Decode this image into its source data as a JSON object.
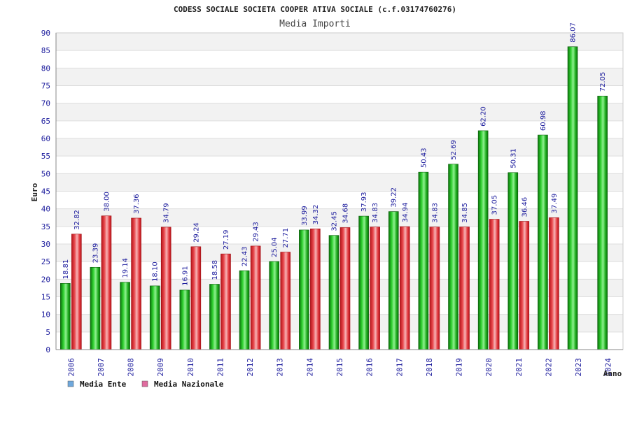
{
  "chart_data": {
    "type": "bar",
    "title": "CODESS SOCIALE SOCIETA COOPER ATIVA SOCIALE (c.f.03174760276)",
    "subtitle": "Media Importi",
    "xlabel": "Anno",
    "ylabel": "Euro",
    "ylim": [
      0,
      90
    ],
    "ytick_step": 5,
    "grid": true,
    "legend_position": "bottom-left",
    "categories": [
      "2006",
      "2007",
      "2008",
      "2009",
      "2010",
      "2011",
      "2012",
      "2013",
      "2014",
      "2015",
      "2016",
      "2017",
      "2018",
      "2019",
      "2020",
      "2021",
      "2022",
      "2023",
      "2024"
    ],
    "series": [
      {
        "name": "Media Ente",
        "legend_color": "#6fa8dc",
        "bar_color": "#1aa81a",
        "values": [
          18.81,
          23.39,
          19.14,
          18.1,
          16.91,
          18.58,
          22.43,
          25.04,
          33.99,
          32.45,
          37.93,
          39.22,
          50.43,
          52.69,
          62.2,
          50.31,
          60.98,
          86.07,
          72.05
        ],
        "labels": [
          "18.81",
          "23.39",
          "19.14",
          "18.10",
          "16.91",
          "18.58",
          "22.43",
          "25.04",
          "33.99",
          "32.45",
          "37.93",
          "39.22",
          "50.43",
          "52.69",
          "62.20",
          "50.31",
          "60.98",
          "86.07",
          "72.05"
        ]
      },
      {
        "name": "Media Nazionale",
        "legend_color": "#e06c9f",
        "bar_color": "#e0242a",
        "values": [
          32.82,
          38.0,
          37.36,
          34.79,
          29.24,
          27.19,
          29.43,
          27.71,
          34.32,
          34.68,
          34.83,
          34.94,
          34.83,
          34.85,
          37.05,
          36.46,
          37.49,
          null,
          null
        ],
        "labels": [
          "32.82",
          "38.00",
          "37.36",
          "34.79",
          "29.24",
          "27.19",
          "29.43",
          "27.71",
          "34.32",
          "34.68",
          "34.83",
          "34.94",
          "34.83",
          "34.85",
          "37.05",
          "36.46",
          "37.49",
          null,
          null
        ]
      }
    ]
  }
}
